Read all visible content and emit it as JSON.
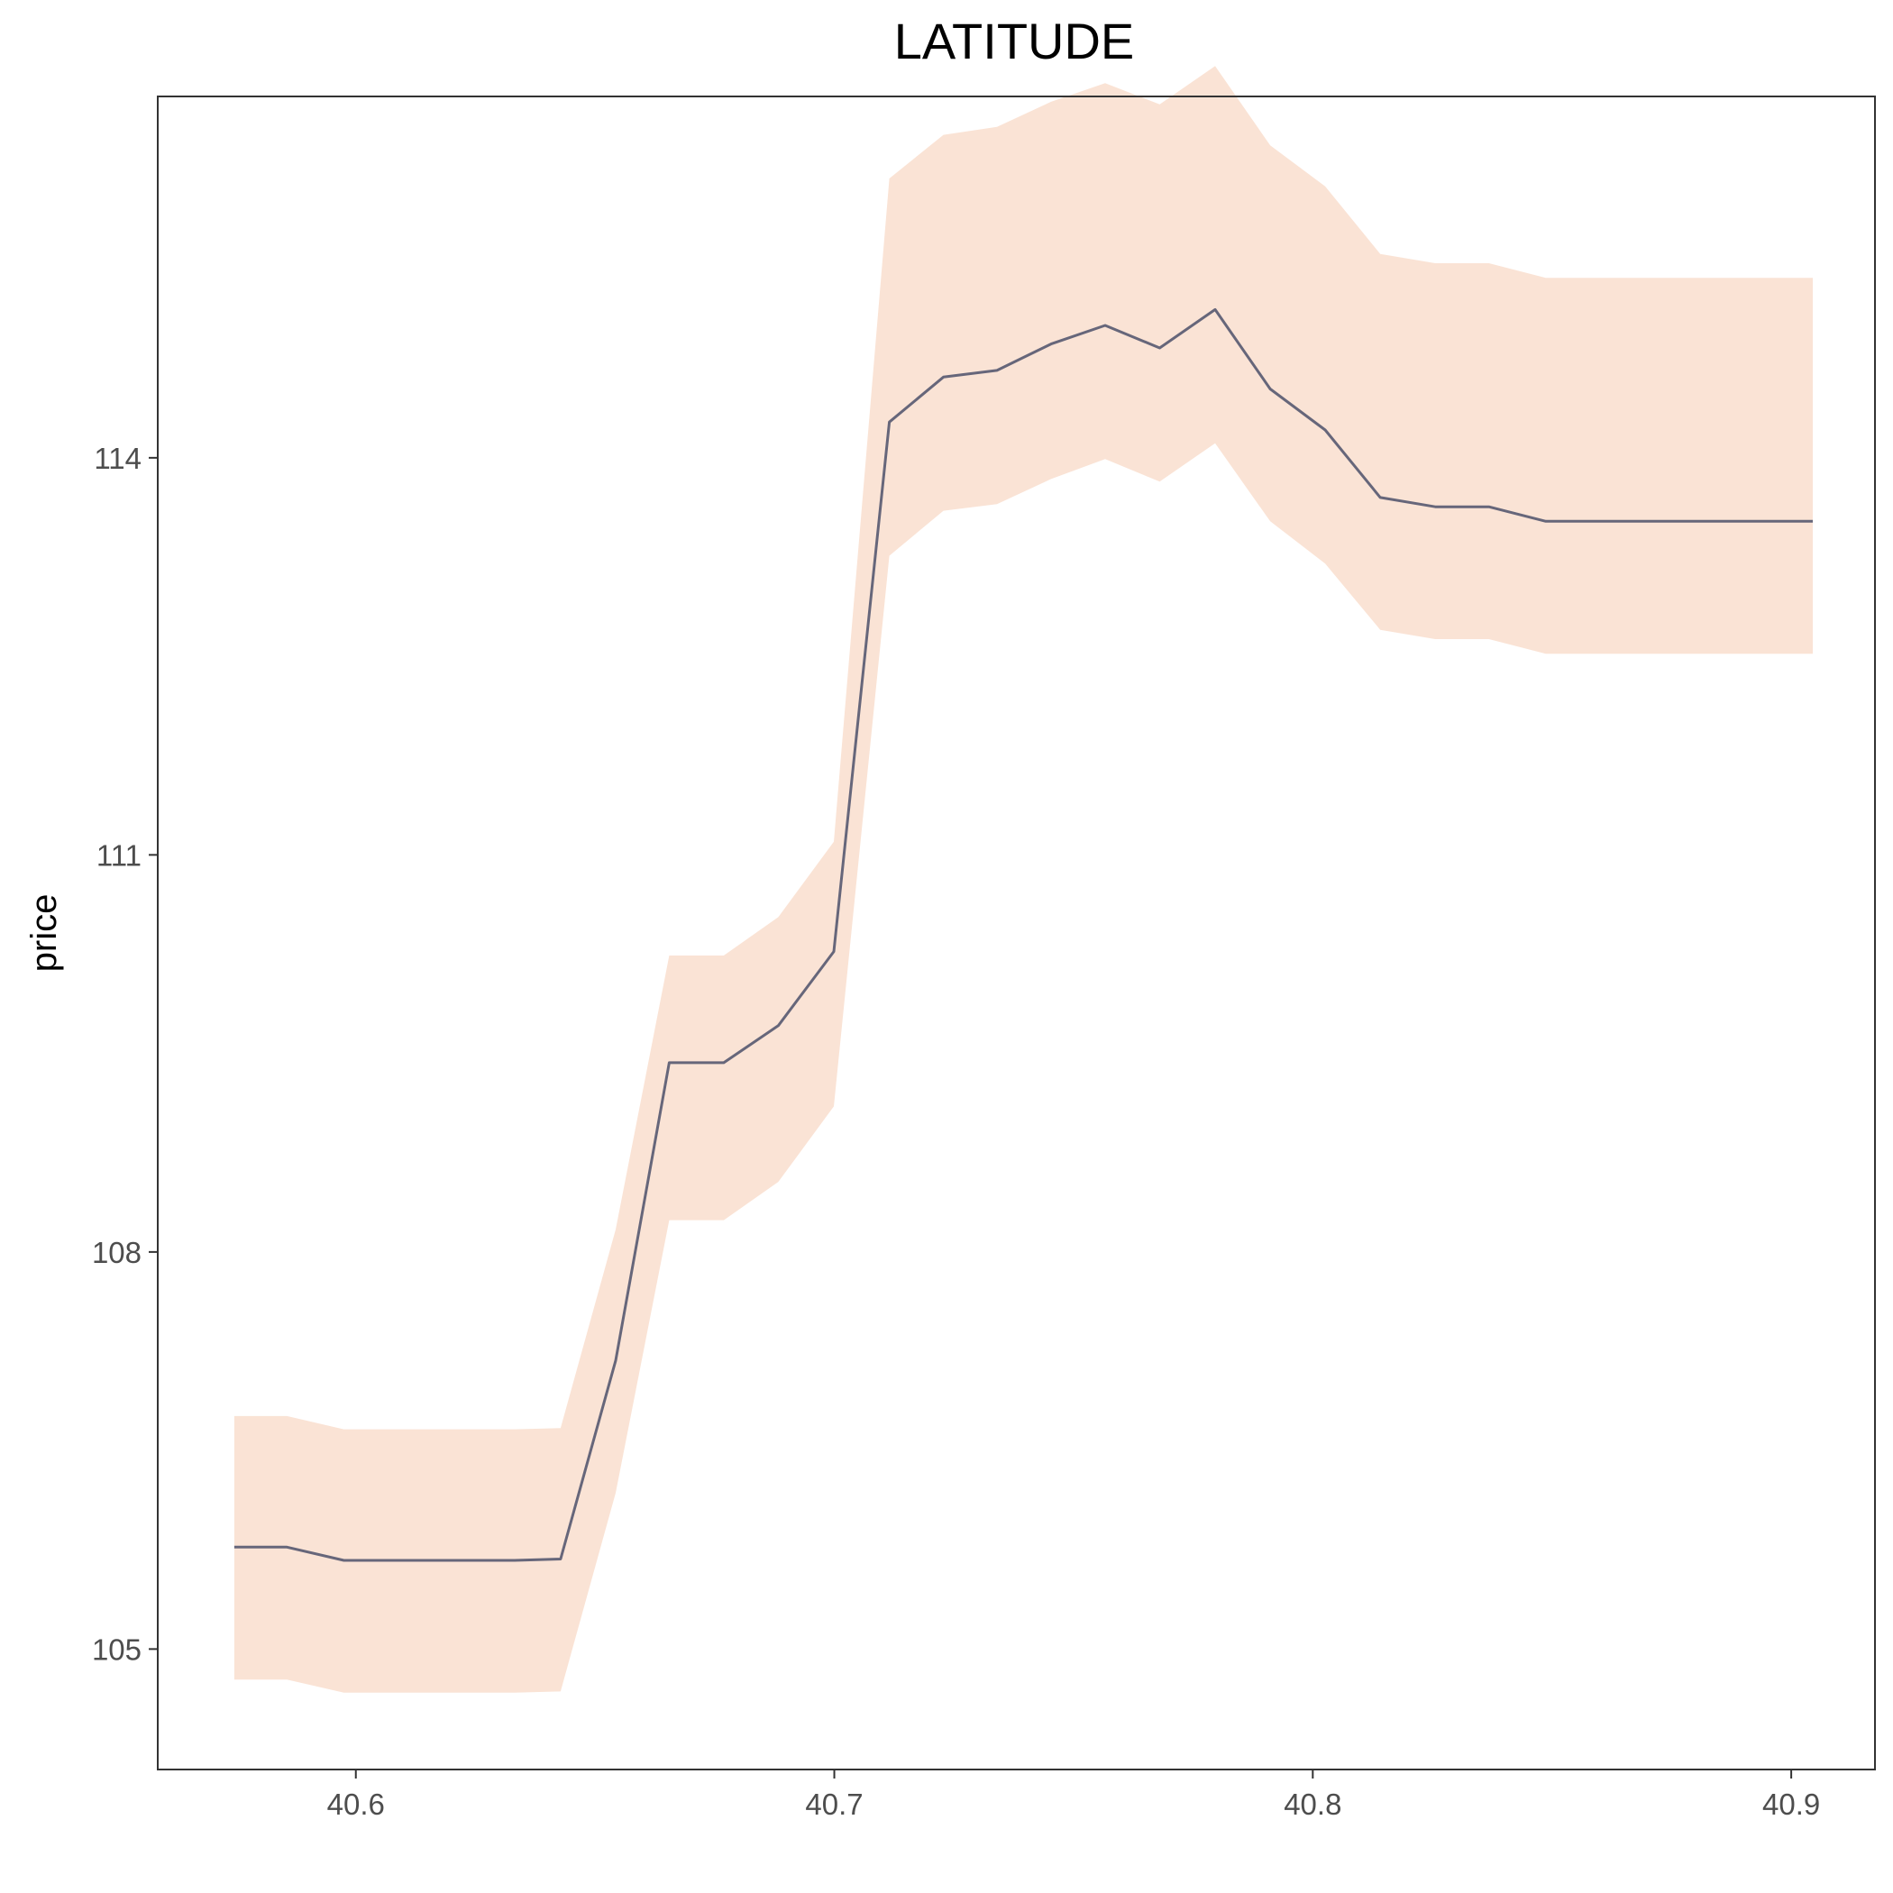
{
  "chart_data": {
    "type": "line",
    "title": "LATITUDE",
    "xlabel": "",
    "ylabel": "price",
    "xlim": [
      40.5586,
      40.9175
    ],
    "ylim": [
      104.09,
      116.73
    ],
    "x_ticks": [
      "40.6",
      "40.7",
      "40.8",
      "40.9"
    ],
    "y_ticks": [
      "105",
      "108",
      "111",
      "114"
    ],
    "grid": false,
    "band_color": "#fae3d5",
    "line_color": "#66667a",
    "series": [
      {
        "x": [
          40.5746,
          40.5856,
          40.5975,
          40.6332,
          40.6428,
          40.6543,
          40.6655,
          40.6769,
          40.6883,
          40.6999,
          40.7115,
          40.7228,
          40.734,
          40.7453,
          40.7566,
          40.768,
          40.7796,
          40.7911,
          40.8026,
          40.8141,
          40.8256,
          40.8368,
          40.8487,
          40.8595,
          40.9045
        ],
        "values": [
          105.77,
          105.77,
          105.67,
          105.67,
          105.68,
          107.18,
          109.43,
          109.43,
          109.71,
          110.27,
          114.27,
          114.61,
          114.66,
          114.86,
          115.0,
          114.83,
          115.12,
          114.52,
          114.21,
          113.7,
          113.63,
          113.63,
          113.52,
          113.52,
          113.52
        ],
        "upper": [
          106.76,
          106.76,
          106.66,
          106.66,
          106.67,
          108.17,
          110.24,
          110.24,
          110.53,
          111.1,
          116.11,
          116.44,
          116.5,
          116.69,
          116.83,
          116.67,
          116.96,
          116.36,
          116.05,
          115.54,
          115.47,
          115.47,
          115.36,
          115.36,
          115.36
        ],
        "lower": [
          104.77,
          104.77,
          104.67,
          104.67,
          104.68,
          106.18,
          108.24,
          108.24,
          108.53,
          109.1,
          113.26,
          113.6,
          113.65,
          113.84,
          113.99,
          113.82,
          114.11,
          113.52,
          113.2,
          112.7,
          112.63,
          112.63,
          112.52,
          112.52,
          112.52
        ]
      }
    ]
  }
}
